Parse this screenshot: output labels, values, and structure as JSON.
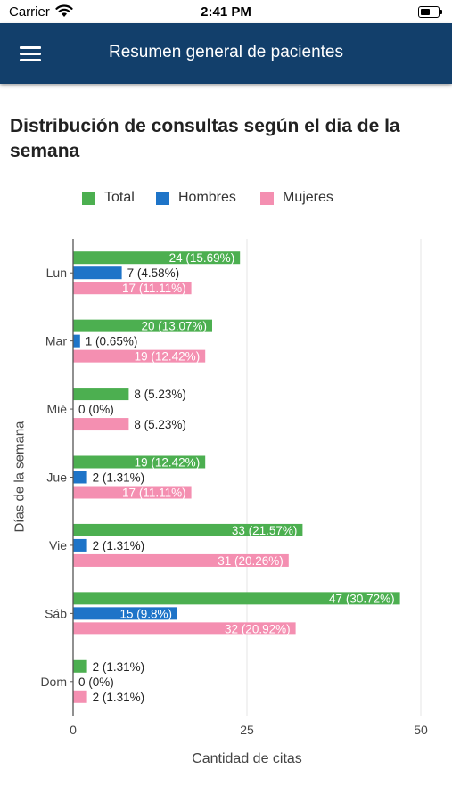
{
  "status_bar": {
    "carrier": "Carrier",
    "time": "2:41 PM"
  },
  "header": {
    "menu_icon": "hamburger-menu-icon",
    "title": "Resumen general de pacientes",
    "background": "#123f6b"
  },
  "chart_data": {
    "type": "bar",
    "orientation": "horizontal",
    "title": "Distribución de consultas según el dia de la semana",
    "xlabel": "Cantidad de citas",
    "ylabel": "Días de la semana",
    "xlim": [
      0,
      50
    ],
    "xticks": [
      0,
      25,
      50
    ],
    "grid": true,
    "legend_position": "top",
    "categories": [
      "Lun",
      "Mar",
      "Mié",
      "Jue",
      "Vie",
      "Sáb",
      "Dom"
    ],
    "series": [
      {
        "name": "Total",
        "color": "#4caf50",
        "values": [
          24,
          20,
          8,
          19,
          33,
          47,
          2
        ],
        "labels": [
          "24 (15.69%)",
          "20 (13.07%)",
          "8 (5.23%)",
          "19 (12.42%)",
          "33 (21.57%)",
          "47 (30.72%)",
          "2 (1.31%)"
        ]
      },
      {
        "name": "Hombres",
        "color": "#1e74c8",
        "values": [
          7,
          1,
          0,
          2,
          2,
          15,
          0
        ],
        "labels": [
          "7 (4.58%)",
          "1 (0.65%)",
          "0 (0%)",
          "2 (1.31%)",
          "2 (1.31%)",
          "15 (9.8%)",
          "0 (0%)"
        ]
      },
      {
        "name": "Mujeres",
        "color": "#f48fb1",
        "values": [
          17,
          19,
          8,
          17,
          31,
          32,
          2
        ],
        "labels": [
          "17 (11.11%)",
          "19 (12.42%)",
          "8 (5.23%)",
          "17 (11.11%)",
          "31 (20.26%)",
          "32 (20.92%)",
          "2 (1.31%)"
        ]
      }
    ]
  }
}
